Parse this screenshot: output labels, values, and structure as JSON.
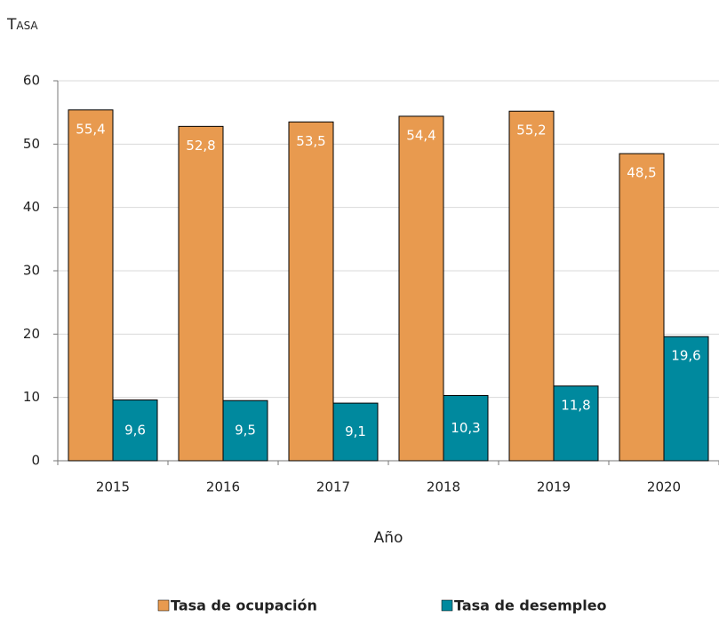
{
  "chart_data": {
    "type": "bar",
    "ylabel": "Tasa",
    "xlabel": "Año",
    "categories": [
      "2015",
      "2016",
      "2017",
      "2018",
      "2019",
      "2020"
    ],
    "series": [
      {
        "name": "Tasa de ocupación",
        "color": "#E89A4F",
        "values": [
          55.4,
          52.8,
          53.5,
          54.4,
          55.2,
          48.5
        ],
        "value_labels": [
          "55,4",
          "52,8",
          "53,5",
          "54,4",
          "55,2",
          "48,5"
        ]
      },
      {
        "name": "Tasa de desempleo",
        "color": "#00899E",
        "values": [
          9.6,
          9.5,
          9.1,
          10.3,
          11.8,
          19.6
        ],
        "value_labels": [
          "9,6",
          "9,5",
          "9,1",
          "10,3",
          "11,8",
          "19,6"
        ]
      }
    ],
    "ylim": [
      0,
      60
    ],
    "yticks": [
      0,
      10,
      20,
      30,
      40,
      50,
      60
    ],
    "grid": true
  }
}
